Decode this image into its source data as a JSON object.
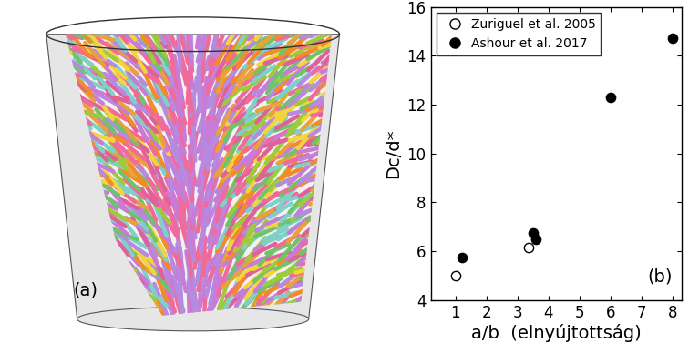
{
  "chart_data": {
    "type": "scatter",
    "x_label": "a/b  (elnyújtottság)",
    "y_label": "Dc/d*",
    "xlim": [
      0.2,
      8.3
    ],
    "xticks": [
      1,
      2,
      3,
      4,
      5,
      6,
      7,
      8
    ],
    "ylim": [
      4,
      16
    ],
    "yticks": [
      4,
      6,
      8,
      10,
      12,
      14,
      16
    ],
    "legend": "upper left",
    "annotations": [
      "(b)"
    ],
    "series": [
      {
        "name": "Zuriguel et al. 2005",
        "color": "#000000",
        "marker": "open circle",
        "x": [
          1.0,
          3.35
        ],
        "values": [
          5.0,
          6.15
        ]
      },
      {
        "name": "Ashour et al. 2017",
        "color": "#000000",
        "marker": "circle",
        "x": [
          1.2,
          3.5,
          3.6,
          6.0,
          8.0
        ],
        "values": [
          5.75,
          6.75,
          6.5,
          12.3,
          14.7
        ]
      }
    ]
  },
  "illustration": {
    "label": "(a)"
  }
}
